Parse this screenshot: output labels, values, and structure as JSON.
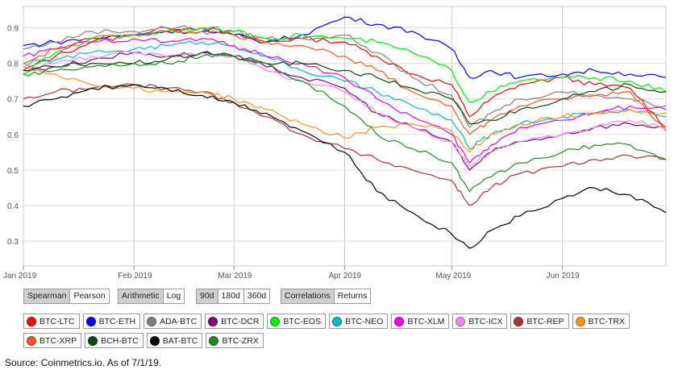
{
  "chart_data": {
    "type": "line",
    "x_start": "2019-01-01",
    "x_end": "2019-06-30",
    "x_ticks": [
      {
        "label": "Jan 2019",
        "date": "2019-01-01"
      },
      {
        "label": "Feb 2019",
        "date": "2019-02-01"
      },
      {
        "label": "Mar 2019",
        "date": "2019-03-01"
      },
      {
        "label": "Apr 2019",
        "date": "2019-04-01"
      },
      {
        "label": "May 2019",
        "date": "2019-05-01"
      },
      {
        "label": "Jun 2019",
        "date": "2019-06-01"
      }
    ],
    "y_ticks": [
      "0.9",
      "0.8",
      "0.7",
      "0.6",
      "0.5",
      "0.4",
      "0.3"
    ],
    "ylim": [
      0.23,
      0.96
    ],
    "grid": true,
    "legend_placement": "bottom",
    "x_dates": [
      "2019-01-01",
      "2019-01-10",
      "2019-01-20",
      "2019-02-01",
      "2019-02-10",
      "2019-02-20",
      "2019-03-01",
      "2019-03-10",
      "2019-03-20",
      "2019-04-01",
      "2019-04-10",
      "2019-04-20",
      "2019-05-01",
      "2019-05-06",
      "2019-05-12",
      "2019-05-20",
      "2019-06-01",
      "2019-06-10",
      "2019-06-20",
      "2019-06-30"
    ],
    "series": [
      {
        "name": "BTC-LTC",
        "color": "#ff0000",
        "values": [
          0.78,
          0.82,
          0.86,
          0.88,
          0.9,
          0.9,
          0.88,
          0.86,
          0.87,
          0.86,
          0.82,
          0.77,
          0.74,
          0.65,
          0.7,
          0.74,
          0.76,
          0.74,
          0.73,
          0.62
        ]
      },
      {
        "name": "BTC-ETH",
        "color": "#0000ff",
        "values": [
          0.85,
          0.86,
          0.87,
          0.88,
          0.89,
          0.89,
          0.88,
          0.86,
          0.88,
          0.93,
          0.91,
          0.89,
          0.84,
          0.76,
          0.78,
          0.76,
          0.77,
          0.78,
          0.77,
          0.76
        ]
      },
      {
        "name": "ADA-BTC",
        "color": "#808080",
        "values": [
          0.84,
          0.86,
          0.89,
          0.89,
          0.9,
          0.9,
          0.89,
          0.87,
          0.87,
          0.88,
          0.83,
          0.76,
          0.71,
          0.62,
          0.66,
          0.7,
          0.72,
          0.71,
          0.7,
          0.68
        ]
      },
      {
        "name": "BTC-DCR",
        "color": "#800080",
        "values": [
          0.78,
          0.79,
          0.81,
          0.83,
          0.82,
          0.83,
          0.82,
          0.79,
          0.76,
          0.73,
          0.66,
          0.62,
          0.58,
          0.5,
          0.55,
          0.58,
          0.6,
          0.62,
          0.63,
          0.62
        ]
      },
      {
        "name": "BTC-EOS",
        "color": "#00ee00",
        "values": [
          0.77,
          0.83,
          0.87,
          0.88,
          0.89,
          0.9,
          0.89,
          0.87,
          0.88,
          0.87,
          0.86,
          0.83,
          0.78,
          0.69,
          0.72,
          0.75,
          0.76,
          0.76,
          0.75,
          0.72
        ]
      },
      {
        "name": "BTC-NEO",
        "color": "#00bbbb",
        "values": [
          0.8,
          0.81,
          0.83,
          0.84,
          0.85,
          0.86,
          0.85,
          0.82,
          0.78,
          0.75,
          0.72,
          0.68,
          0.64,
          0.56,
          0.6,
          0.63,
          0.65,
          0.66,
          0.67,
          0.65
        ]
      },
      {
        "name": "BTC-XLM",
        "color": "#ee00ee",
        "values": [
          0.82,
          0.84,
          0.86,
          0.87,
          0.86,
          0.87,
          0.85,
          0.82,
          0.8,
          0.76,
          0.7,
          0.65,
          0.6,
          0.52,
          0.57,
          0.62,
          0.64,
          0.66,
          0.68,
          0.67
        ]
      },
      {
        "name": "BTC-ICX",
        "color": "#ee88ee",
        "values": [
          0.79,
          0.8,
          0.82,
          0.83,
          0.82,
          0.83,
          0.82,
          0.78,
          0.75,
          0.72,
          0.66,
          0.62,
          0.58,
          0.51,
          0.55,
          0.58,
          0.6,
          0.62,
          0.64,
          0.62
        ]
      },
      {
        "name": "BTC-REP",
        "color": "#aa3333",
        "values": [
          0.7,
          0.72,
          0.73,
          0.74,
          0.73,
          0.72,
          0.69,
          0.65,
          0.6,
          0.56,
          0.53,
          0.5,
          0.47,
          0.4,
          0.45,
          0.49,
          0.51,
          0.53,
          0.54,
          0.53
        ]
      },
      {
        "name": "BTC-TRX",
        "color": "#f09820",
        "values": [
          0.79,
          0.77,
          0.74,
          0.73,
          0.72,
          0.72,
          0.7,
          0.67,
          0.63,
          0.59,
          0.62,
          0.63,
          0.61,
          0.55,
          0.6,
          0.63,
          0.65,
          0.66,
          0.67,
          0.66
        ]
      },
      {
        "name": "BTC-XRP",
        "color": "#ff5522",
        "values": [
          0.8,
          0.84,
          0.87,
          0.88,
          0.89,
          0.89,
          0.88,
          0.86,
          0.85,
          0.82,
          0.78,
          0.72,
          0.68,
          0.6,
          0.64,
          0.68,
          0.7,
          0.71,
          0.72,
          0.61
        ]
      },
      {
        "name": "BCH-BTC",
        "color": "#0a4a0a",
        "values": [
          0.78,
          0.79,
          0.8,
          0.8,
          0.81,
          0.83,
          0.82,
          0.8,
          0.8,
          0.78,
          0.76,
          0.73,
          0.7,
          0.63,
          0.64,
          0.67,
          0.7,
          0.72,
          0.74,
          0.72
        ]
      },
      {
        "name": "BAT-BTC",
        "color": "#000000",
        "values": [
          0.68,
          0.7,
          0.73,
          0.74,
          0.73,
          0.71,
          0.69,
          0.66,
          0.61,
          0.55,
          0.44,
          0.38,
          0.32,
          0.28,
          0.33,
          0.37,
          0.42,
          0.45,
          0.43,
          0.38
        ]
      },
      {
        "name": "BTC-ZRX",
        "color": "#228822",
        "values": [
          0.77,
          0.78,
          0.79,
          0.8,
          0.8,
          0.82,
          0.82,
          0.8,
          0.75,
          0.68,
          0.6,
          0.56,
          0.52,
          0.44,
          0.48,
          0.52,
          0.55,
          0.57,
          0.57,
          0.53
        ]
      }
    ]
  },
  "controls": {
    "method": [
      {
        "label": "Spearman",
        "active": true
      },
      {
        "label": "Pearson",
        "active": false
      }
    ],
    "scale": [
      {
        "label": "Arithmetic",
        "active": true
      },
      {
        "label": "Log",
        "active": false
      }
    ],
    "window": [
      {
        "label": "90d",
        "active": true
      },
      {
        "label": "180d",
        "active": false
      },
      {
        "label": "360d",
        "active": false
      }
    ],
    "mode": [
      {
        "label": "Correlations",
        "active": true
      },
      {
        "label": "Returns",
        "active": false
      }
    ]
  },
  "source_note": "Source:  Coinmetrics.io.  As  of  7/1/19."
}
